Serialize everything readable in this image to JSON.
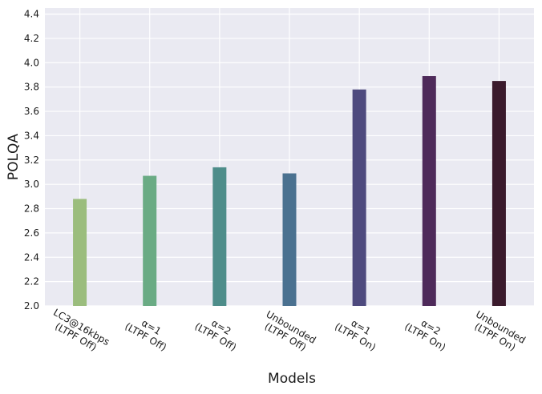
{
  "chart_data": {
    "type": "bar",
    "categories": [
      "LC3@16kbps\n(LTPF Off)",
      "α=1\n(LTPF Off)",
      "α=2\n(LTPF Off)",
      "Unbounded\n(LTPF Off)",
      "α=1\n(LTPF On)",
      "α=2\n(LTPF On)",
      "Unbounded\n(LTPF On)"
    ],
    "values": [
      2.88,
      3.07,
      3.14,
      3.09,
      3.78,
      3.89,
      3.85
    ],
    "colors": [
      "#9bbd7d",
      "#6aab84",
      "#4e8d8a",
      "#4a7190",
      "#4e4a7e",
      "#4e2a5a",
      "#3a1a2c"
    ],
    "xlabel": "Models",
    "ylabel": "POLQA",
    "ylim": [
      2.0,
      4.45
    ],
    "yticks": [
      2.0,
      2.2,
      2.4,
      2.6,
      2.8,
      3.0,
      3.2,
      3.4,
      3.6,
      3.8,
      4.0,
      4.2,
      4.4
    ],
    "grid": true,
    "background": "#eaeaf2"
  }
}
